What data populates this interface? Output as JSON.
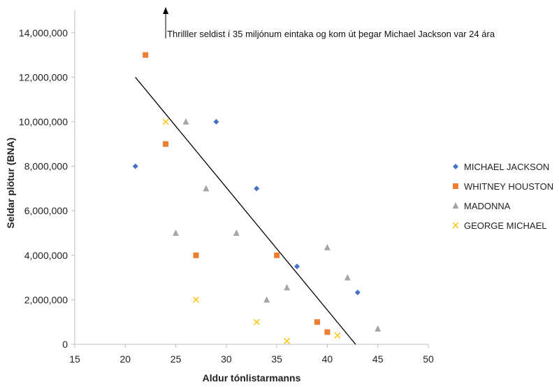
{
  "chart_data": {
    "type": "scatter",
    "title": "",
    "xlabel": "Aldur tónlistarmanns",
    "ylabel": "Seldar plötur (BNA)",
    "xlim": [
      15,
      50
    ],
    "ylim": [
      0,
      15000000
    ],
    "xticks": [
      15,
      20,
      25,
      30,
      35,
      40,
      45,
      50
    ],
    "yticks": [
      0,
      2000000,
      4000000,
      6000000,
      8000000,
      10000000,
      12000000,
      14000000
    ],
    "xtick_labels": [
      "15",
      "20",
      "25",
      "30",
      "35",
      "40",
      "45",
      "50"
    ],
    "ytick_labels": [
      "0",
      "2,000,000",
      "4,000,000",
      "6,000,000",
      "8,000,000",
      "10,000,000",
      "12,000,000",
      "14,000,000"
    ],
    "legend_position": "right",
    "grid": false,
    "series": [
      {
        "name": "MICHAEL JACKSON",
        "marker": "diamond",
        "color": "#4472C4",
        "points": [
          [
            21,
            8000000
          ],
          [
            29,
            10000000
          ],
          [
            33,
            7000000
          ],
          [
            37,
            3500000
          ],
          [
            43,
            2330000
          ]
        ]
      },
      {
        "name": "WHITNEY HOUSTON",
        "marker": "square",
        "color": "#ED7D31",
        "points": [
          [
            22,
            13000000
          ],
          [
            24,
            9000000
          ],
          [
            27,
            4000000
          ],
          [
            35,
            4000000
          ],
          [
            39,
            1000000
          ],
          [
            40,
            550000
          ]
        ]
      },
      {
        "name": "MADONNA",
        "marker": "triangle",
        "color": "#A5A5A5",
        "points": [
          [
            26,
            10000000
          ],
          [
            25,
            5000000
          ],
          [
            28,
            7000000
          ],
          [
            31,
            5000000
          ],
          [
            34,
            2000000
          ],
          [
            36,
            2550000
          ],
          [
            40,
            4350000
          ],
          [
            42,
            3000000
          ],
          [
            45,
            700000
          ]
        ]
      },
      {
        "name": "GEORGE MICHAEL",
        "marker": "x",
        "color": "#FFC000",
        "points": [
          [
            24,
            10000000
          ],
          [
            27,
            2000000
          ],
          [
            33,
            1000000
          ],
          [
            36,
            150000
          ],
          [
            41,
            400000
          ]
        ]
      }
    ],
    "trendline": {
      "color": "#000000",
      "points": [
        [
          21,
          12000000
        ],
        [
          42.8,
          0
        ]
      ]
    },
    "annotation": {
      "text": "Thrilller seldist í 35 miljónum eintaka og kom út þegar Michael Jackson var 24 ára",
      "arrow_x": 24,
      "arrow_from_y": 13750000,
      "arrow_to_y": 15000000
    }
  }
}
